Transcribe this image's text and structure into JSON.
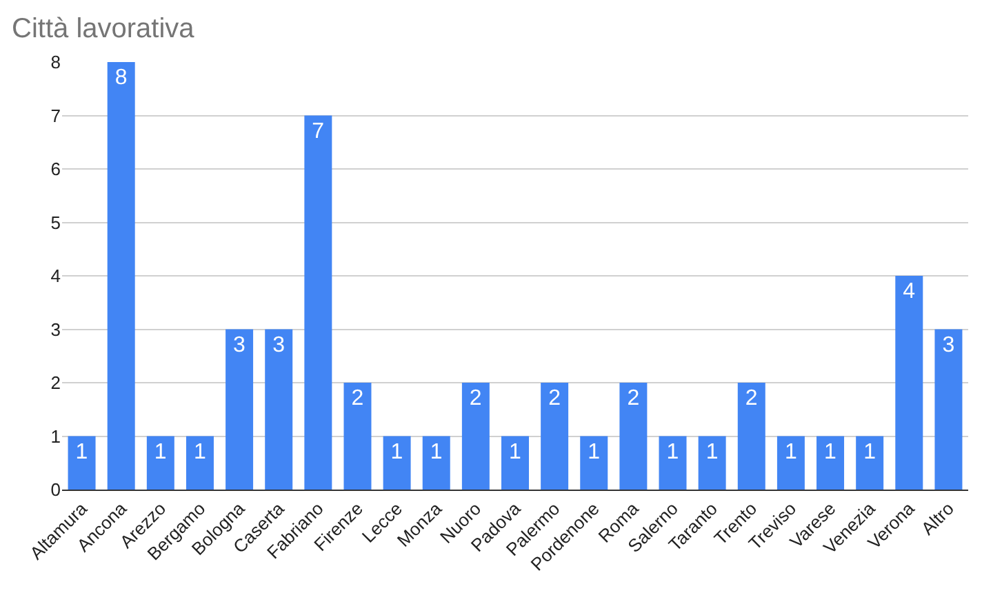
{
  "chart_data": {
    "type": "bar",
    "title": "Città lavorativa",
    "categories": [
      "Altamura",
      "Ancona",
      "Arezzo",
      "Bergamo",
      "Bologna",
      "Caserta",
      "Fabriano",
      "Firenze",
      "Lecce",
      "Monza",
      "Nuoro",
      "Padova",
      "Palermo",
      "Pordenone",
      "Roma",
      "Salerno",
      "Taranto",
      "Trento",
      "Treviso",
      "Varese",
      "Venezia",
      "Verona",
      "Altro"
    ],
    "values": [
      1,
      8,
      1,
      1,
      3,
      3,
      7,
      2,
      1,
      1,
      2,
      1,
      2,
      1,
      2,
      1,
      1,
      2,
      1,
      1,
      1,
      4,
      3
    ],
    "color": "#4285f4",
    "ylim": [
      0,
      8
    ],
    "yticks": [
      0,
      1,
      2,
      3,
      4,
      5,
      6,
      7,
      8
    ],
    "grid": "y",
    "data_labels": true,
    "legend": false
  }
}
